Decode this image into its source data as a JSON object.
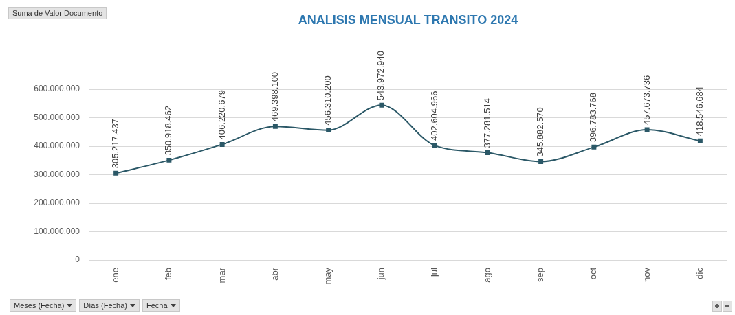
{
  "chart_data": {
    "type": "line",
    "title": "ANALISIS MENSUAL TRANSITO 2024",
    "categories": [
      "ene",
      "feb",
      "mar",
      "abr",
      "may",
      "jun",
      "jul",
      "ago",
      "sep",
      "oct",
      "nov",
      "dic"
    ],
    "series": [
      {
        "color": "#2b5867",
        "values": [
          305217437,
          350918462,
          406220679,
          469398100,
          456310200,
          543972940,
          402604966,
          377281514,
          345882570,
          396783768,
          457673736,
          418546684
        ],
        "value_labels": [
          "305.217.437",
          "350.918.462",
          "406.220.679",
          "469.398.100",
          "456.310.200",
          "543.972.940",
          "402.604.966",
          "377.281.514",
          "345.882.570",
          "396.783.768",
          "457.673.736",
          "418.546.684"
        ]
      }
    ],
    "ylim": [
      0,
      600000000
    ],
    "yticks": [
      {
        "value": 0,
        "label": "0"
      },
      {
        "value": 100000000,
        "label": "100.000.000"
      },
      {
        "value": 200000000,
        "label": "200.000.000"
      },
      {
        "value": 300000000,
        "label": "300.000.000"
      },
      {
        "value": 400000000,
        "label": "400.000.000"
      },
      {
        "value": 500000000,
        "label": "500.000.000"
      },
      {
        "value": 600000000,
        "label": "600.000.000"
      }
    ],
    "grid": "y",
    "marker": "square",
    "annotations": [
      "Suma de Valor Documento",
      "Meses (Fecha)",
      "Días (Fecha)",
      "Fecha"
    ]
  }
}
